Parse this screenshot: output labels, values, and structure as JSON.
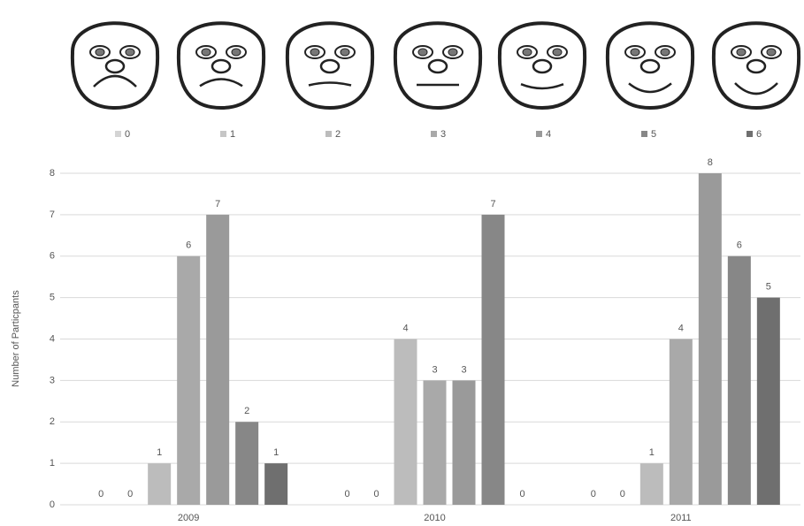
{
  "chart_data": {
    "type": "bar",
    "y_axis_label": "Number of Particpants",
    "categories": [
      "2009",
      "2010",
      "2011"
    ],
    "series": [
      {
        "name": "0",
        "color": "#d4d4d4",
        "values": [
          0,
          0,
          0
        ]
      },
      {
        "name": "1",
        "color": "#c6c6c6",
        "values": [
          0,
          0,
          0
        ]
      },
      {
        "name": "2",
        "color": "#bcbcbc",
        "values": [
          1,
          4,
          1
        ]
      },
      {
        "name": "3",
        "color": "#a9a9a9",
        "values": [
          6,
          3,
          4
        ]
      },
      {
        "name": "4",
        "color": "#9a9a9a",
        "values": [
          7,
          3,
          8
        ]
      },
      {
        "name": "5",
        "color": "#878787",
        "values": [
          2,
          7,
          6
        ]
      },
      {
        "name": "6",
        "color": "#6f6f6f",
        "values": [
          1,
          0,
          5
        ]
      }
    ],
    "ylim": [
      0,
      8
    ],
    "yticks": [
      0,
      1,
      2,
      3,
      4,
      5,
      6,
      7,
      8
    ],
    "grid": true,
    "legend": "top",
    "data_labels": true
  }
}
